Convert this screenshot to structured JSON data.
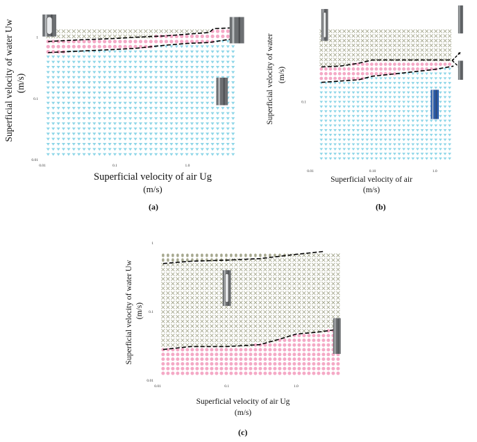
{
  "colors": {
    "annular": "#a6a88f",
    "churn": "#f4a9c6",
    "bubbly": "#8ed6e8",
    "boundary": "#000000",
    "photo_steel": "#6c6f72",
    "photo_blue": "#2a5aa8"
  },
  "chart_data": [
    {
      "panel": "(a)",
      "type": "scatter",
      "xlabel_line1": "Superficial velocity of air Ug",
      "xlabel_line2": "(m/s)",
      "ylabel_line1": "Superficial velocity of water Uw",
      "ylabel_line2": "(m/s)",
      "x_scale": "log",
      "y_scale": "log",
      "xlim": [
        0.01,
        5
      ],
      "ylim": [
        0.01,
        2
      ],
      "xticks": [
        "0.01",
        "0.1",
        "1.0"
      ],
      "yticks": [
        "0.01",
        "0.1",
        "1"
      ],
      "regions": [
        {
          "marker": "x",
          "color_key": "annular",
          "lower_boundary": 1,
          "upper": "top"
        },
        {
          "marker": "o",
          "color_key": "churn",
          "lower_boundary": 0,
          "upper_boundary": 1
        },
        {
          "marker": "v",
          "color_key": "bubbly",
          "lower": "bottom",
          "upper_boundary": 0
        }
      ],
      "boundaries": [
        {
          "x": [
            0.012,
            0.03,
            0.1,
            0.2,
            0.5,
            1.0,
            2.0,
            4.5
          ],
          "y": [
            0.56,
            0.59,
            0.63,
            0.66,
            0.74,
            0.79,
            0.82,
            0.95
          ]
        },
        {
          "x": [
            0.012,
            0.03,
            0.1,
            0.2,
            0.5,
            1.0,
            2.0,
            2.3,
            4.5
          ],
          "y": [
            0.85,
            0.9,
            0.95,
            1.0,
            1.05,
            1.12,
            1.19,
            1.38,
            1.42
          ]
        }
      ],
      "photos": [
        {
          "name": "annular-flow-photo",
          "x": 0.0125,
          "y": 1.55,
          "w_dec": 0.19,
          "h_dec": 0.36,
          "style": "annular"
        },
        {
          "name": "slug-photo",
          "x": 4.8,
          "y": 1.3,
          "w_dec": 0.2,
          "h_dec": 0.43,
          "style": "plain"
        },
        {
          "name": "bubbly-photo",
          "x": 3.0,
          "y": 0.13,
          "w_dec": 0.16,
          "h_dec": 0.45,
          "style": "plain"
        }
      ]
    },
    {
      "panel": "(b)",
      "type": "scatter",
      "xlabel_line1": "Superficial velocity of air",
      "xlabel_line2": "(m/s)",
      "ylabel_line1": "Superficial velocity of water",
      "ylabel_line2": "(m/s)",
      "x_scale": "log",
      "y_scale": "log",
      "xlim": [
        0.01,
        3
      ],
      "ylim": [
        0.01,
        2
      ],
      "xticks": [
        "0.01",
        "0.10",
        "1.0"
      ],
      "yticks": [
        "0.1"
      ],
      "regions": [
        {
          "marker": "x",
          "color_key": "annular",
          "lower_boundary": 1,
          "upper": "top"
        },
        {
          "marker": "o",
          "color_key": "churn",
          "lower_boundary": 0,
          "upper_boundary": 1
        },
        {
          "marker": "v",
          "color_key": "bubbly",
          "lower": "bottom",
          "upper_boundary": 0
        }
      ],
      "boundaries": [
        {
          "x": [
            0.015,
            0.03,
            0.06,
            0.1,
            0.3,
            1.0,
            2.0
          ],
          "y": [
            0.2,
            0.21,
            0.22,
            0.25,
            0.28,
            0.32,
            0.36
          ]
        },
        {
          "x": [
            0.015,
            0.03,
            0.06,
            0.1,
            0.3,
            1.0,
            2.0
          ],
          "y": [
            0.35,
            0.36,
            0.4,
            0.45,
            0.45,
            0.45,
            0.45
          ]
        }
      ],
      "photos": [
        {
          "name": "annular-flow-photo",
          "x": 0.017,
          "y": 1.6,
          "w_dec": 0.11,
          "h_dec": 0.5,
          "style": "annular"
        },
        {
          "name": "slug-photo",
          "x": 2.6,
          "y": 1.95,
          "w_dec": 0.08,
          "h_dec": 0.44,
          "style": "plain"
        },
        {
          "name": "churn-photo",
          "x": 2.6,
          "y": 0.31,
          "w_dec": 0.08,
          "h_dec": 0.3,
          "style": "plain"
        },
        {
          "name": "bubbly-photo",
          "x": 1.0,
          "y": 0.09,
          "w_dec": 0.13,
          "h_dec": 0.46,
          "style": "blue"
        }
      ],
      "arrows": [
        {
          "x1": 1.9,
          "y1": 0.44,
          "x2": 2.6,
          "y2": 0.6
        },
        {
          "x1": 1.9,
          "y1": 0.44,
          "x2": 2.6,
          "y2": 0.33
        }
      ]
    },
    {
      "panel": "(c)",
      "type": "scatter",
      "xlabel_line1": "Superficial velocity of air Ug",
      "xlabel_line2": "(m/s)",
      "ylabel_line1": "Superficial velocity of water Uw",
      "ylabel_line2": "(m/s)",
      "x_scale": "log",
      "y_scale": "log",
      "xlim": [
        0.01,
        5
      ],
      "ylim": [
        0.01,
        1
      ],
      "xticks": [
        "0.01",
        "0.1",
        "1.0"
      ],
      "yticks": [
        "0.01",
        "0.1",
        "1"
      ],
      "regions": [
        {
          "marker": "8",
          "color_key": "annular",
          "lower_boundary": 1,
          "upper": "top"
        },
        {
          "marker": "x",
          "color_key": "annular",
          "lower_boundary": 0,
          "upper_boundary": 1
        },
        {
          "marker": "o",
          "color_key": "churn",
          "lower": "bottom",
          "upper_boundary": 0
        }
      ],
      "boundaries": [
        {
          "x": [
            0.012,
            0.03,
            0.1,
            0.3,
            0.6,
            1.0,
            2.0,
            3.5,
            4.5
          ],
          "y": [
            0.028,
            0.031,
            0.031,
            0.033,
            0.04,
            0.047,
            0.05,
            0.054,
            0.058
          ]
        },
        {
          "x": [
            0.012,
            0.03,
            0.1,
            0.3,
            0.6,
            1.0,
            2.5
          ],
          "y": [
            0.5,
            0.54,
            0.56,
            0.59,
            0.64,
            0.68,
            0.75
          ]
        }
      ],
      "photos": [
        {
          "name": "annular-flow-photo",
          "x": 0.1,
          "y": 0.22,
          "w_dec": 0.12,
          "h_dec": 0.52,
          "style": "annular"
        },
        {
          "name": "churn-photo",
          "x": 3.9,
          "y": 0.044,
          "w_dec": 0.11,
          "h_dec": 0.52,
          "style": "plain"
        }
      ]
    }
  ],
  "panel_labels": [
    "(a)",
    "(b)",
    "(c)"
  ]
}
